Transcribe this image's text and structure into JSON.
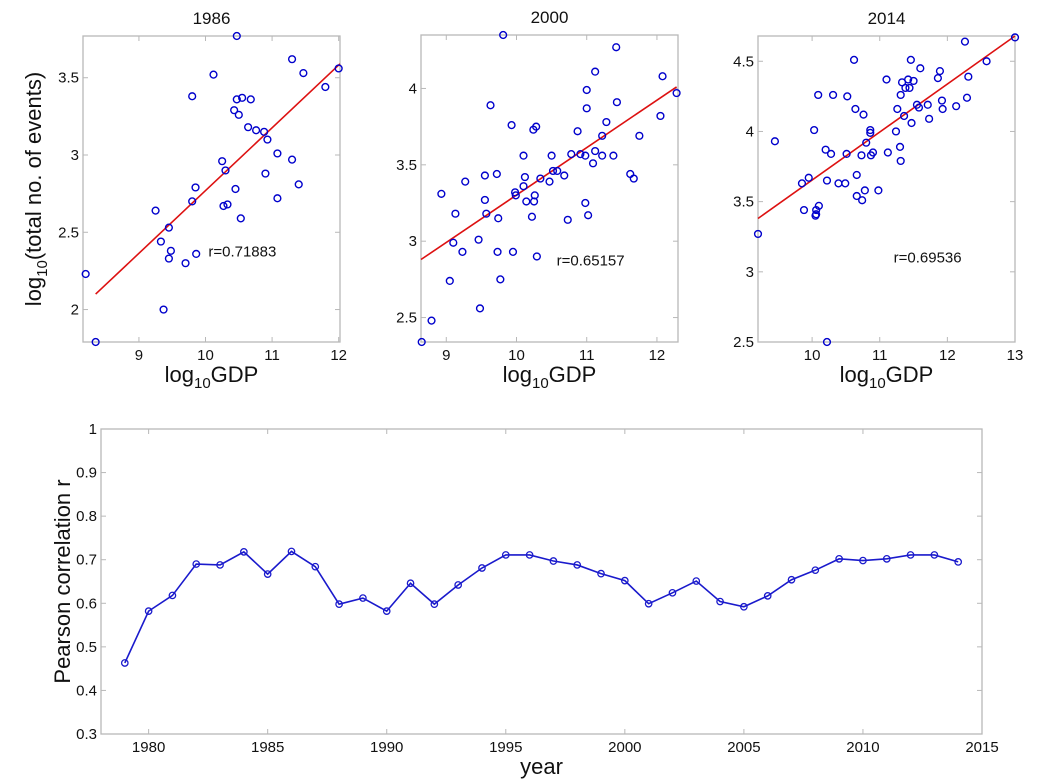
{
  "chart_data": [
    {
      "type": "scatter",
      "title": "1986",
      "xlabel": "log10GDP",
      "ylabel": "log10(total no. of events)",
      "xlim": [
        8.16,
        12.02
      ],
      "ylim": [
        1.79,
        3.77
      ],
      "xticks": [
        9,
        10,
        11,
        12
      ],
      "yticks": [
        2,
        2.5,
        3,
        3.5
      ],
      "ytick_labels": [
        "2",
        "2.5",
        "3",
        "3.5"
      ],
      "annotation": "r=0.71883",
      "fit_line": {
        "x": [
          8.35,
          12.02
        ],
        "y": [
          2.1,
          3.59
        ]
      },
      "points": [
        [
          8.2,
          2.23
        ],
        [
          8.35,
          1.79
        ],
        [
          9.25,
          2.64
        ],
        [
          9.33,
          2.44
        ],
        [
          9.37,
          2.0
        ],
        [
          9.45,
          2.53
        ],
        [
          9.45,
          2.33
        ],
        [
          9.48,
          2.38
        ],
        [
          9.7,
          2.3
        ],
        [
          9.8,
          3.38
        ],
        [
          9.8,
          2.7
        ],
        [
          9.85,
          2.79
        ],
        [
          9.86,
          2.36
        ],
        [
          10.12,
          3.52
        ],
        [
          10.25,
          2.96
        ],
        [
          10.27,
          2.67
        ],
        [
          10.3,
          2.9
        ],
        [
          10.33,
          2.68
        ],
        [
          10.43,
          3.29
        ],
        [
          10.45,
          2.78
        ],
        [
          10.47,
          3.36
        ],
        [
          10.47,
          3.77
        ],
        [
          10.5,
          3.26
        ],
        [
          10.53,
          2.59
        ],
        [
          10.55,
          3.37
        ],
        [
          10.64,
          3.18
        ],
        [
          10.68,
          3.36
        ],
        [
          10.76,
          3.16
        ],
        [
          10.88,
          3.15
        ],
        [
          10.9,
          2.88
        ],
        [
          10.93,
          3.1
        ],
        [
          11.08,
          3.01
        ],
        [
          11.08,
          2.72
        ],
        [
          11.3,
          3.62
        ],
        [
          11.3,
          2.97
        ],
        [
          11.4,
          2.81
        ],
        [
          11.47,
          3.53
        ],
        [
          11.8,
          3.44
        ],
        [
          12.0,
          3.56
        ]
      ]
    },
    {
      "type": "scatter",
      "title": "2000",
      "xlabel": "log10GDP",
      "ylabel": "",
      "xlim": [
        8.64,
        12.3
      ],
      "ylim": [
        2.34,
        4.35
      ],
      "xticks": [
        9,
        10,
        11,
        12
      ],
      "yticks": [
        2.5,
        3,
        3.5,
        4
      ],
      "ytick_labels": [
        "2.5",
        "3",
        "3.5",
        "4"
      ],
      "annotation": "r=0.65157",
      "fit_line": {
        "x": [
          8.64,
          12.28
        ],
        "y": [
          2.88,
          4.01
        ]
      },
      "points": [
        [
          8.65,
          2.34
        ],
        [
          8.79,
          2.48
        ],
        [
          8.93,
          3.31
        ],
        [
          9.05,
          2.74
        ],
        [
          9.1,
          2.99
        ],
        [
          9.13,
          3.18
        ],
        [
          9.23,
          2.93
        ],
        [
          9.27,
          3.39
        ],
        [
          9.46,
          3.01
        ],
        [
          9.48,
          2.56
        ],
        [
          9.55,
          3.43
        ],
        [
          9.55,
          3.27
        ],
        [
          9.57,
          3.18
        ],
        [
          9.63,
          3.89
        ],
        [
          9.72,
          3.44
        ],
        [
          9.73,
          2.93
        ],
        [
          9.74,
          3.15
        ],
        [
          9.77,
          2.75
        ],
        [
          9.81,
          4.35
        ],
        [
          9.93,
          3.76
        ],
        [
          9.95,
          2.93
        ],
        [
          9.98,
          3.32
        ],
        [
          9.99,
          3.3
        ],
        [
          10.1,
          3.56
        ],
        [
          10.1,
          3.36
        ],
        [
          10.12,
          3.42
        ],
        [
          10.14,
          3.26
        ],
        [
          10.22,
          3.16
        ],
        [
          10.24,
          3.73
        ],
        [
          10.25,
          3.26
        ],
        [
          10.26,
          3.3
        ],
        [
          10.28,
          3.75
        ],
        [
          10.29,
          2.9
        ],
        [
          10.34,
          3.41
        ],
        [
          10.47,
          3.39
        ],
        [
          10.5,
          3.56
        ],
        [
          10.52,
          3.46
        ],
        [
          10.58,
          3.46
        ],
        [
          10.68,
          3.43
        ],
        [
          10.73,
          3.14
        ],
        [
          10.78,
          3.57
        ],
        [
          10.87,
          3.72
        ],
        [
          10.91,
          3.57
        ],
        [
          10.98,
          3.56
        ],
        [
          10.98,
          3.25
        ],
        [
          11.0,
          3.87
        ],
        [
          11.0,
          3.99
        ],
        [
          11.02,
          3.17
        ],
        [
          11.09,
          3.51
        ],
        [
          11.12,
          3.59
        ],
        [
          11.12,
          4.11
        ],
        [
          11.22,
          3.56
        ],
        [
          11.22,
          3.69
        ],
        [
          11.28,
          3.78
        ],
        [
          11.38,
          3.56
        ],
        [
          11.42,
          4.27
        ],
        [
          11.43,
          3.91
        ],
        [
          11.62,
          3.44
        ],
        [
          11.67,
          3.41
        ],
        [
          11.75,
          3.69
        ],
        [
          12.05,
          3.82
        ],
        [
          12.08,
          4.08
        ],
        [
          12.28,
          3.97
        ]
      ]
    },
    {
      "type": "scatter",
      "title": "2014",
      "xlabel": "log10GDP",
      "ylabel": "",
      "xlim": [
        9.2,
        13.0
      ],
      "ylim": [
        2.5,
        4.68
      ],
      "xticks": [
        10,
        11,
        12,
        13
      ],
      "yticks": [
        2.5,
        3,
        3.5,
        4,
        4.5
      ],
      "ytick_labels": [
        "2.5",
        "3",
        "3.5",
        "4",
        "4.5"
      ],
      "annotation": "r=0.69536",
      "fit_line": {
        "x": [
          9.2,
          13.0
        ],
        "y": [
          3.38,
          4.68
        ]
      },
      "points": [
        [
          9.2,
          3.27
        ],
        [
          9.45,
          3.93
        ],
        [
          9.85,
          3.63
        ],
        [
          9.88,
          3.44
        ],
        [
          9.95,
          3.67
        ],
        [
          10.03,
          4.01
        ],
        [
          10.05,
          3.4
        ],
        [
          10.06,
          3.41
        ],
        [
          10.06,
          3.44
        ],
        [
          10.09,
          4.26
        ],
        [
          10.1,
          3.47
        ],
        [
          10.2,
          3.87
        ],
        [
          10.22,
          3.65
        ],
        [
          10.22,
          2.5
        ],
        [
          10.28,
          3.84
        ],
        [
          10.31,
          4.26
        ],
        [
          10.39,
          3.63
        ],
        [
          10.49,
          3.63
        ],
        [
          10.51,
          3.84
        ],
        [
          10.52,
          4.25
        ],
        [
          10.62,
          4.51
        ],
        [
          10.64,
          4.16
        ],
        [
          10.66,
          3.69
        ],
        [
          10.66,
          3.54
        ],
        [
          10.73,
          3.83
        ],
        [
          10.74,
          3.51
        ],
        [
          10.76,
          4.12
        ],
        [
          10.78,
          3.58
        ],
        [
          10.8,
          3.92
        ],
        [
          10.86,
          4.01
        ],
        [
          10.86,
          3.99
        ],
        [
          10.87,
          3.83
        ],
        [
          10.9,
          3.85
        ],
        [
          10.98,
          3.58
        ],
        [
          11.1,
          4.37
        ],
        [
          11.12,
          3.85
        ],
        [
          11.24,
          4.0
        ],
        [
          11.26,
          4.16
        ],
        [
          11.3,
          3.89
        ],
        [
          11.31,
          4.26
        ],
        [
          11.31,
          3.79
        ],
        [
          11.33,
          4.35
        ],
        [
          11.36,
          4.11
        ],
        [
          11.38,
          4.31
        ],
        [
          11.42,
          4.37
        ],
        [
          11.44,
          4.31
        ],
        [
          11.46,
          4.51
        ],
        [
          11.47,
          4.06
        ],
        [
          11.5,
          4.36
        ],
        [
          11.55,
          4.19
        ],
        [
          11.58,
          4.17
        ],
        [
          11.6,
          4.45
        ],
        [
          11.71,
          4.19
        ],
        [
          11.73,
          4.09
        ],
        [
          11.86,
          4.38
        ],
        [
          11.89,
          4.43
        ],
        [
          11.92,
          4.22
        ],
        [
          11.93,
          4.16
        ],
        [
          12.13,
          4.18
        ],
        [
          12.26,
          4.64
        ],
        [
          12.29,
          4.24
        ],
        [
          12.31,
          4.39
        ],
        [
          12.58,
          4.5
        ],
        [
          13.0,
          4.67
        ]
      ]
    },
    {
      "type": "line",
      "title": "",
      "xlabel": "year",
      "ylabel": "Pearson correlation r",
      "xlim": [
        1978,
        2015
      ],
      "ylim": [
        0.3,
        1.0
      ],
      "xticks": [
        1980,
        1985,
        1990,
        1995,
        2000,
        2005,
        2010,
        2015
      ],
      "yticks": [
        0.3,
        0.4,
        0.5,
        0.6,
        0.7,
        0.8,
        0.9,
        1.0
      ],
      "ytick_labels": [
        "0.3",
        "0.4",
        "0.5",
        "0.6",
        "0.7",
        "0.8",
        "0.9",
        "1"
      ],
      "grid": false,
      "series": [
        {
          "name": "Pearson correlation r",
          "x": [
            1979,
            1980,
            1981,
            1982,
            1983,
            1984,
            1985,
            1986,
            1987,
            1988,
            1989,
            1990,
            1991,
            1992,
            1993,
            1994,
            1995,
            1996,
            1997,
            1998,
            1999,
            2000,
            2001,
            2002,
            2003,
            2004,
            2005,
            2006,
            2007,
            2008,
            2009,
            2010,
            2011,
            2012,
            2013,
            2014
          ],
          "values": [
            0.463,
            0.582,
            0.618,
            0.69,
            0.688,
            0.718,
            0.667,
            0.719,
            0.684,
            0.598,
            0.612,
            0.582,
            0.646,
            0.598,
            0.642,
            0.681,
            0.711,
            0.711,
            0.697,
            0.688,
            0.668,
            0.652,
            0.599,
            0.624,
            0.651,
            0.604,
            0.592,
            0.617,
            0.654,
            0.676,
            0.702,
            0.698,
            0.702,
            0.711,
            0.711,
            0.695
          ]
        }
      ]
    }
  ],
  "colors": {
    "marker": "#0000cc",
    "fit_line": "#dd1111",
    "series_line": "#1a1acc",
    "frame": "#b8b8b8"
  }
}
